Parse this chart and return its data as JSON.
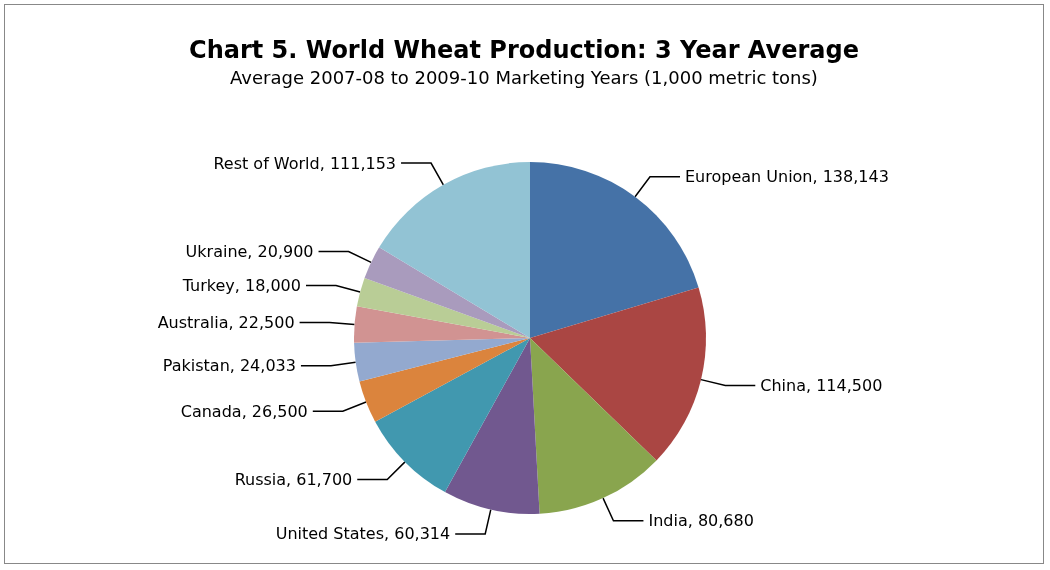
{
  "chart_data": {
    "type": "pie",
    "title": "Chart 5. World Wheat Production: 3 Year Average",
    "subtitle": "Average 2007-08 to 2009-10 Marketing Years (1,000 metric tons)",
    "categories": [
      "European Union",
      "China",
      "India",
      "United States",
      "Russia",
      "Canada",
      "Pakistan",
      "Australia",
      "Turkey",
      "Ukraine",
      "Rest of World"
    ],
    "values": [
      138143,
      114500,
      80680,
      60314,
      61700,
      26500,
      24033,
      22500,
      18000,
      20900,
      111153
    ],
    "value_labels": [
      "138,143",
      "114,500",
      "80,680",
      "60,314",
      "61,700",
      "26,500",
      "24,033",
      "22,500",
      "18,000",
      "20,900",
      "111,153"
    ],
    "colors": [
      "#4572a7",
      "#aa4643",
      "#89a54e",
      "#71588f",
      "#4198af",
      "#db843d",
      "#93a9cf",
      "#d19392",
      "#b9cd96",
      "#a99bbd",
      "#92c3d4"
    ],
    "legend": false
  }
}
